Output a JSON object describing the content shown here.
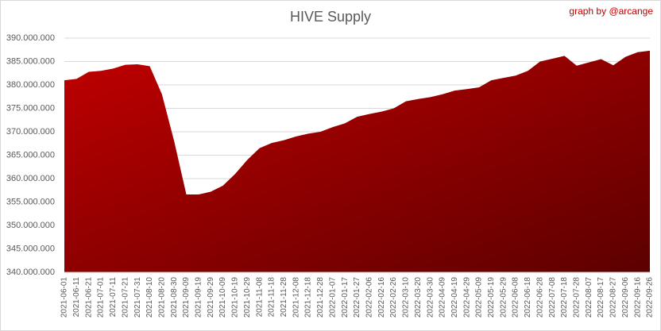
{
  "chart_data": {
    "type": "area",
    "title": "HIVE Supply",
    "annotation": "graph by @arcange",
    "annotation_color": "#c00000",
    "color": "#c00000",
    "color_end": "#5c0000",
    "grid": true,
    "categories": [
      "2021-06-01",
      "2021-06-11",
      "2021-06-21",
      "2021-07-01",
      "2021-07-11",
      "2021-07-21",
      "2021-07-31",
      "2021-08-10",
      "2021-08-20",
      "2021-08-30",
      "2021-09-09",
      "2021-09-19",
      "2021-09-29",
      "2021-10-09",
      "2021-10-19",
      "2021-10-29",
      "2021-11-08",
      "2021-11-18",
      "2021-11-28",
      "2021-12-08",
      "2021-12-18",
      "2021-12-28",
      "2022-01-07",
      "2022-01-17",
      "2022-01-27",
      "2022-02-06",
      "2022-02-16",
      "2022-02-26",
      "2022-03-10",
      "2022-03-20",
      "2022-03-30",
      "2022-04-09",
      "2022-04-19",
      "2022-04-29",
      "2022-05-09",
      "2022-05-19",
      "2022-05-29",
      "2022-06-08",
      "2022-06-18",
      "2022-06-28",
      "2022-07-08",
      "2022-07-18",
      "2022-07-28",
      "2022-08-07",
      "2022-08-17",
      "2022-08-27",
      "2022-09-06",
      "2022-09-16",
      "2022-09-26"
    ],
    "values": [
      381000000,
      381300000,
      382800000,
      383000000,
      383500000,
      384300000,
      384400000,
      384000000,
      378000000,
      368000000,
      356600000,
      356600000,
      357200000,
      358500000,
      361000000,
      364000000,
      366500000,
      367600000,
      368200000,
      369000000,
      369600000,
      370000000,
      371000000,
      371800000,
      373200000,
      373800000,
      374300000,
      375000000,
      376500000,
      377000000,
      377400000,
      378000000,
      378800000,
      379100000,
      379500000,
      381000000,
      381500000,
      382000000,
      383000000,
      385000000,
      385600000,
      386200000,
      384100000,
      384800000,
      385500000,
      384200000,
      386000000,
      387000000,
      387300000
    ],
    "ylim": [
      340000000,
      390000000
    ],
    "yticks": [
      {
        "value": 340000000,
        "label": "340.000.000"
      },
      {
        "value": 345000000,
        "label": "345.000.000"
      },
      {
        "value": 350000000,
        "label": "350.000.000"
      },
      {
        "value": 355000000,
        "label": "355.000.000"
      },
      {
        "value": 360000000,
        "label": "360.000.000"
      },
      {
        "value": 365000000,
        "label": "365.000.000"
      },
      {
        "value": 370000000,
        "label": "370.000.000"
      },
      {
        "value": 375000000,
        "label": "375.000.000"
      },
      {
        "value": 380000000,
        "label": "380.000.000"
      },
      {
        "value": 385000000,
        "label": "385.000.000"
      },
      {
        "value": 390000000,
        "label": "390.000.000"
      }
    ]
  }
}
